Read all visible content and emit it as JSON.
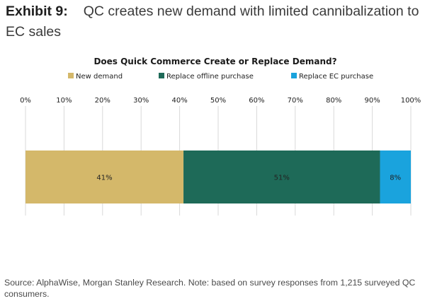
{
  "header": {
    "exhibit_label": "Exhibit 9:",
    "exhibit_title": "QC creates new demand with limited cannibalization to EC sales"
  },
  "chart_data": {
    "type": "bar",
    "orientation": "horizontal",
    "stacked": true,
    "title": "Does Quick Commerce Create or Replace Demand?",
    "xlabel": "",
    "ylabel": "",
    "xlim": [
      0,
      100
    ],
    "x_ticks": [
      0,
      10,
      20,
      30,
      40,
      50,
      60,
      70,
      80,
      90,
      100
    ],
    "x_tick_labels": [
      "0%",
      "10%",
      "20%",
      "30%",
      "40%",
      "50%",
      "60%",
      "70%",
      "80%",
      "90%",
      "100%"
    ],
    "grid": true,
    "legend_position": "top",
    "categories": [
      ""
    ],
    "series": [
      {
        "name": "New demand",
        "values": [
          41
        ],
        "label": "41%",
        "color": "#d4b86a"
      },
      {
        "name": "Replace offline purchase",
        "values": [
          51
        ],
        "label": "51%",
        "color": "#1e6a58"
      },
      {
        "name": "Replace EC purchase",
        "values": [
          8
        ],
        "label": "8%",
        "color": "#1aa3dd"
      }
    ]
  },
  "footer": {
    "source": "Source: AlphaWise, Morgan Stanley Research. Note: based on survey responses from 1,215 surveyed QC consumers."
  }
}
